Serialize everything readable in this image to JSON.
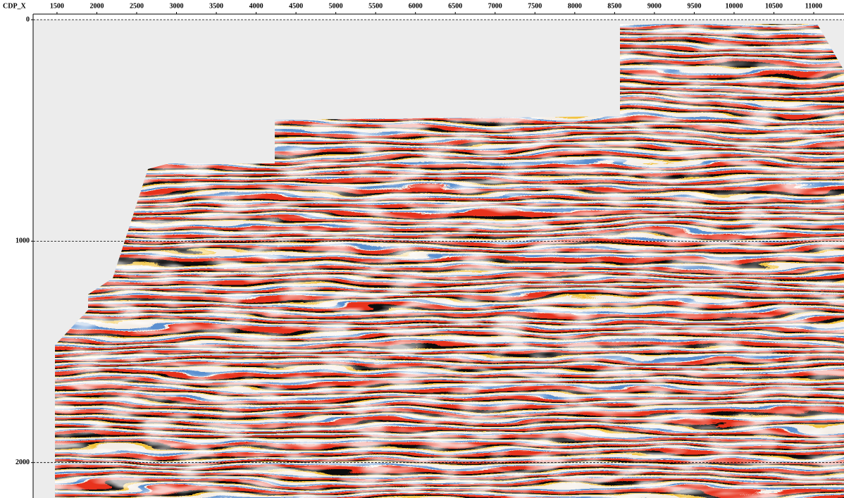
{
  "chart_data": {
    "type": "seismic",
    "x_label": "CDP_X",
    "xlim": [
      1200,
      11380
    ],
    "ylim": [
      0,
      2160
    ],
    "xticks": [
      1500,
      2000,
      2500,
      3000,
      3500,
      4000,
      4500,
      5000,
      5500,
      6000,
      6500,
      7000,
      7500,
      8000,
      8500,
      9000,
      9500,
      10000,
      10500,
      11000
    ],
    "yticks": [
      0,
      1000,
      2000
    ],
    "grid": true
  }
}
